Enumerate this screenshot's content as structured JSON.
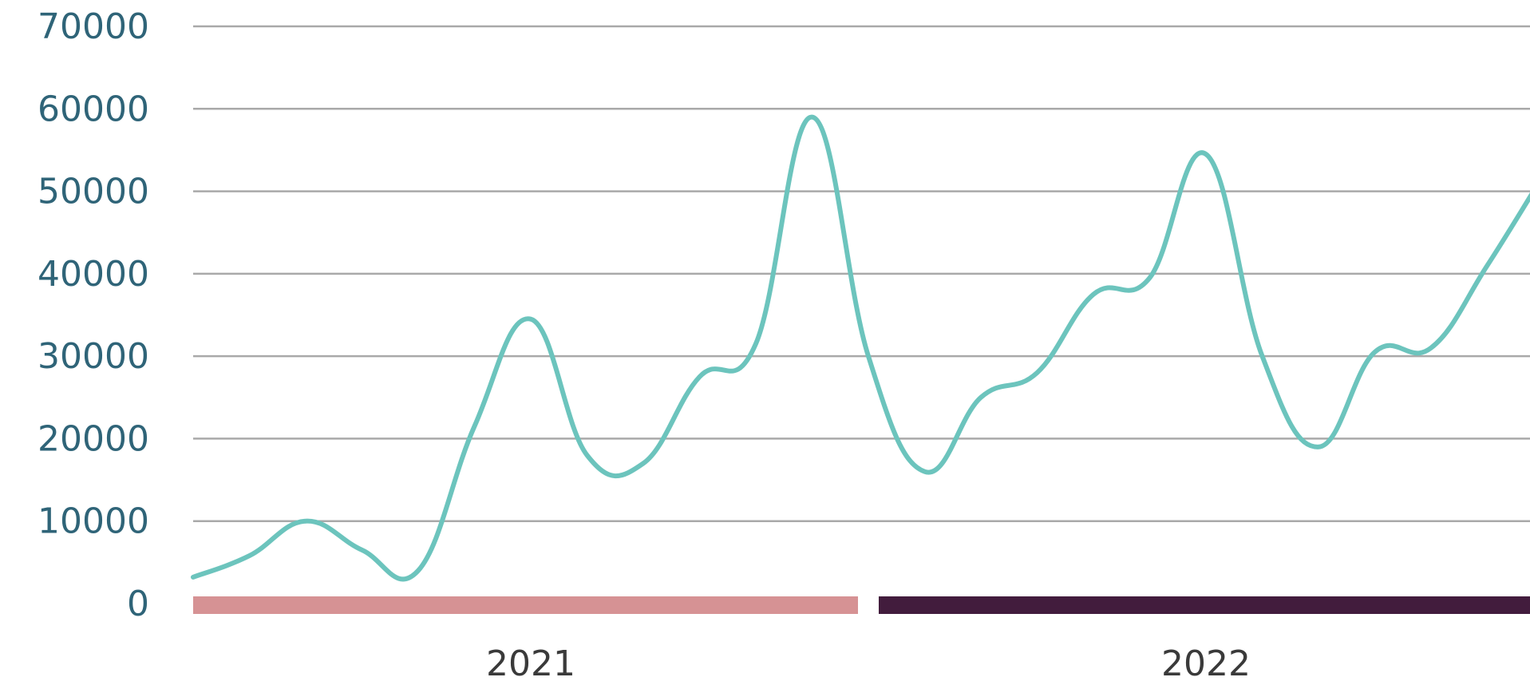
{
  "chart_data": {
    "type": "line",
    "title": "",
    "xlabel": "",
    "ylabel": "",
    "ylim": [
      0,
      70000
    ],
    "yticks": [
      0,
      10000,
      20000,
      30000,
      40000,
      50000,
      60000,
      70000
    ],
    "ytick_labels": [
      "0",
      "10000",
      "20000",
      "30000",
      "40000",
      "50000",
      "60000",
      "70000"
    ],
    "grid": true,
    "periods": [
      {
        "label": "2021",
        "color": "#d69294",
        "start_month": 0,
        "end_month": 12
      },
      {
        "label": "2022",
        "color": "#421c3d",
        "start_month": 12,
        "end_month": 24
      }
    ],
    "x": [
      0,
      1,
      2,
      3,
      4,
      5,
      6,
      7,
      8,
      9,
      10,
      11,
      12,
      13,
      14,
      15,
      16,
      17,
      18,
      19,
      20,
      21,
      22,
      23,
      24
    ],
    "series": [
      {
        "color": "#6cc4bd",
        "values": [
          3200,
          5800,
          10000,
          6500,
          4000,
          21500,
          34500,
          18000,
          17000,
          27500,
          31500,
          59000,
          30000,
          16000,
          25000,
          28000,
          37500,
          39500,
          54500,
          30000,
          19000,
          30500,
          31000,
          41000,
          52000
        ]
      }
    ]
  }
}
